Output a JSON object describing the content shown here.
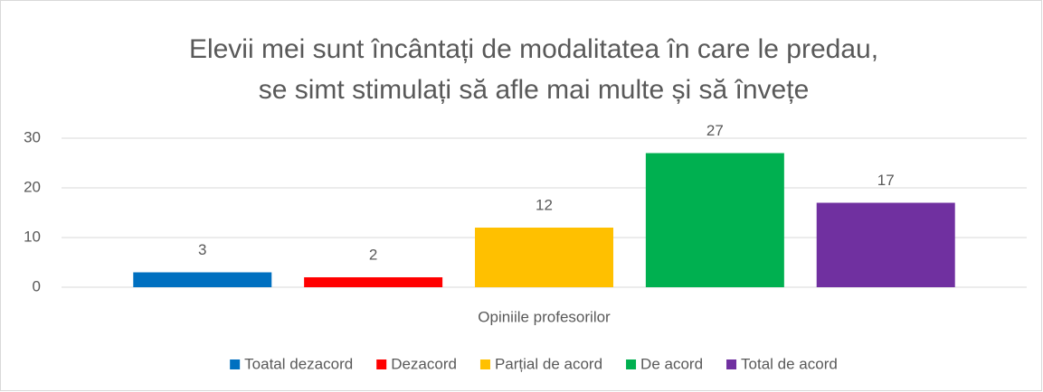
{
  "chart_data": {
    "type": "bar",
    "title": [
      "Elevii mei sunt încântați de modalitatea în care le predau,",
      "se simt stimulați să afle mai multe și să învețe"
    ],
    "categories": [
      "Opiniile profesorilor"
    ],
    "series": [
      {
        "name": "Toatal dezacord",
        "color": "#0070c0",
        "values": [
          3
        ]
      },
      {
        "name": "Dezacord",
        "color": "#ff0000",
        "values": [
          2
        ]
      },
      {
        "name": "Parțial de acord",
        "color": "#ffc000",
        "values": [
          12
        ]
      },
      {
        "name": "De acord",
        "color": "#00b050",
        "values": [
          27
        ]
      },
      {
        "name": "Total de acord",
        "color": "#7030a0",
        "values": [
          17
        ]
      }
    ],
    "ylim": [
      0,
      30
    ],
    "yticks": [
      0,
      10,
      20,
      30
    ],
    "grid": true,
    "legend": "bottom"
  }
}
